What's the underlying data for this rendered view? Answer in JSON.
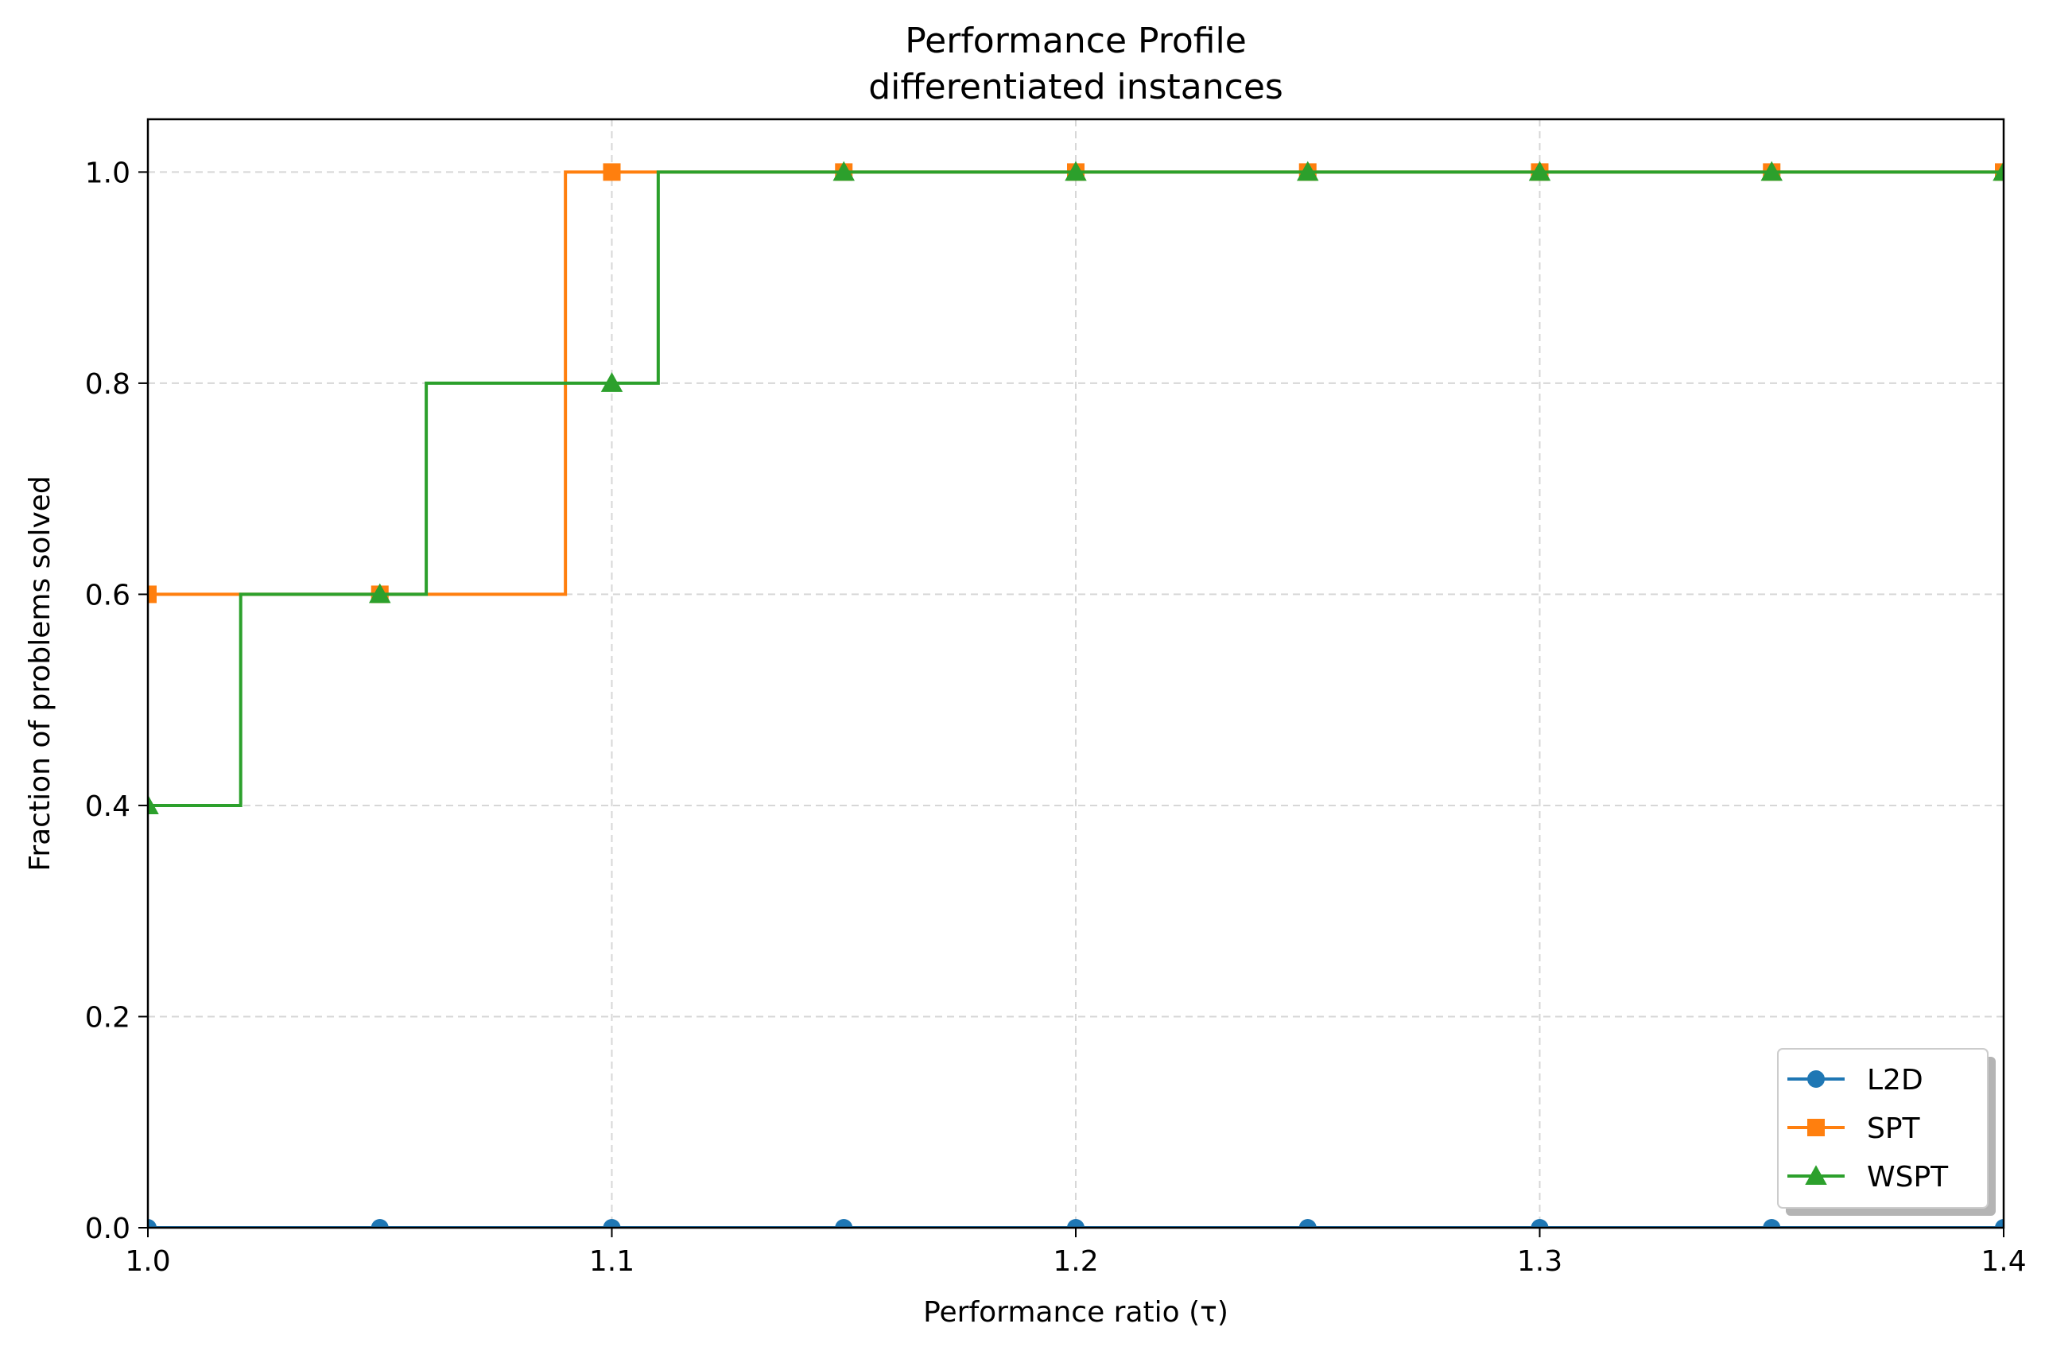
{
  "chart_data": {
    "type": "line",
    "title": "Performance Profile",
    "subtitle": "differentiated instances",
    "xlabel": "Performance ratio (τ)",
    "ylabel": "Fraction of problems solved",
    "xlim": [
      1.0,
      1.4
    ],
    "ylim": [
      0.0,
      1.05
    ],
    "x_ticks": [
      1.0,
      1.1,
      1.2,
      1.3,
      1.4
    ],
    "x_tick_labels": [
      "1.0",
      "1.1",
      "1.2",
      "1.3",
      "1.4"
    ],
    "y_ticks": [
      0.0,
      0.2,
      0.4,
      0.6,
      0.8,
      1.0
    ],
    "y_tick_labels": [
      "0.0",
      "0.2",
      "0.4",
      "0.6",
      "0.8",
      "1.0"
    ],
    "grid": true,
    "legend_position": "lower-right",
    "step_style": "post",
    "series": [
      {
        "name": "L2D",
        "color": "#1f77b4",
        "marker": "circle",
        "step_x": [
          1.0,
          1.4
        ],
        "step_y": [
          0.0,
          0.0
        ],
        "marker_x": [
          1.0,
          1.05,
          1.1,
          1.15,
          1.2,
          1.25,
          1.3,
          1.35,
          1.4
        ],
        "marker_y": [
          0.0,
          0.0,
          0.0,
          0.0,
          0.0,
          0.0,
          0.0,
          0.0,
          0.0
        ]
      },
      {
        "name": "SPT",
        "color": "#ff7f0e",
        "marker": "square",
        "step_x": [
          1.0,
          1.09,
          1.4
        ],
        "step_y": [
          0.6,
          1.0,
          1.0
        ],
        "marker_x": [
          1.0,
          1.05,
          1.1,
          1.15,
          1.2,
          1.25,
          1.3,
          1.35,
          1.4
        ],
        "marker_y": [
          0.6,
          0.6,
          1.0,
          1.0,
          1.0,
          1.0,
          1.0,
          1.0,
          1.0
        ]
      },
      {
        "name": "WSPT",
        "color": "#2ca02c",
        "marker": "triangle",
        "step_x": [
          1.0,
          1.02,
          1.06,
          1.11,
          1.4
        ],
        "step_y": [
          0.4,
          0.6,
          0.8,
          1.0,
          1.0
        ],
        "marker_x": [
          1.0,
          1.05,
          1.1,
          1.15,
          1.2,
          1.25,
          1.3,
          1.35,
          1.4
        ],
        "marker_y": [
          0.4,
          0.6,
          0.8,
          1.0,
          1.0,
          1.0,
          1.0,
          1.0,
          1.0
        ]
      }
    ]
  }
}
